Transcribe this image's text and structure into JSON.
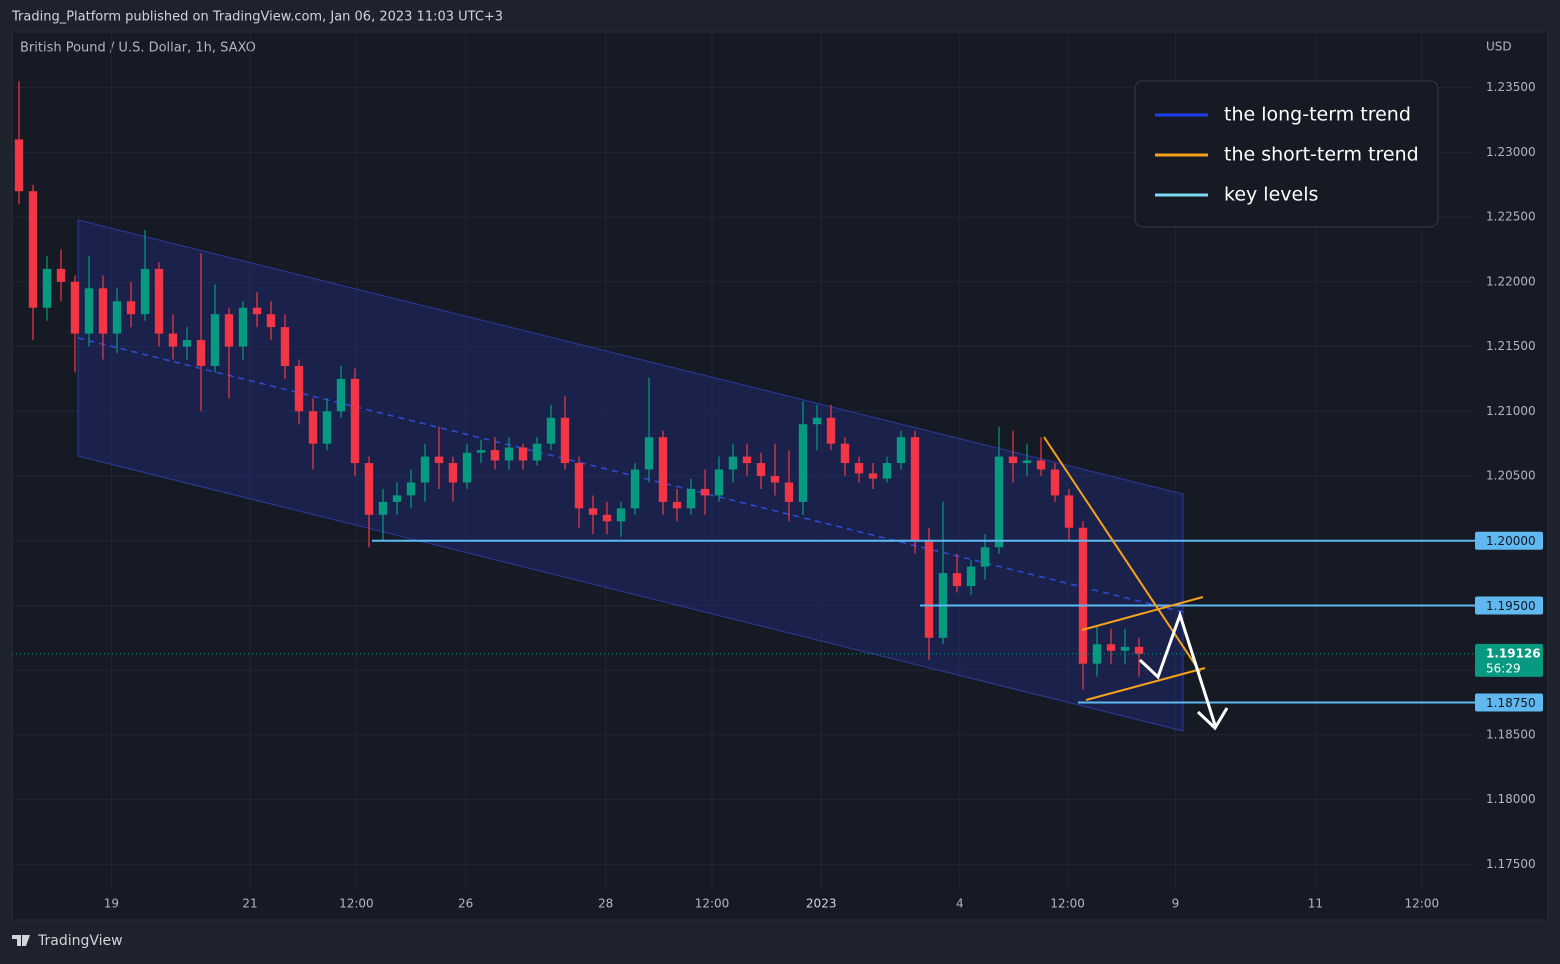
{
  "header": {
    "published": "Trading_Platform published on TradingView.com, Jan 06, 2023 11:03 UTC+3",
    "footer": "TradingView"
  },
  "chart_data": {
    "type": "candlestick",
    "title": "British Pound / U.S. Dollar, 1h, SAXO",
    "currency": "USD",
    "up_color": "#089981",
    "down_color": "#f23645",
    "xlim": [
      0,
      104.5
    ],
    "xticks": [
      {
        "value": 7.1,
        "label": "19"
      },
      {
        "value": 17,
        "label": "21"
      },
      {
        "value": 24.6,
        "label": "12:00"
      },
      {
        "value": 32.4,
        "label": "26"
      },
      {
        "value": 42.4,
        "label": "28"
      },
      {
        "value": 50,
        "label": "12:00"
      },
      {
        "value": 57.8,
        "label": "2023"
      },
      {
        "value": 67.7,
        "label": "4"
      },
      {
        "value": 75.4,
        "label": "12:00"
      },
      {
        "value": 83.1,
        "label": "9"
      },
      {
        "value": 93.1,
        "label": "11"
      },
      {
        "value": 100.7,
        "label": "12:00"
      }
    ],
    "ylim": [
      1.1707,
      1.2393
    ],
    "yticks": [
      {
        "value": 1.175,
        "label": "1.17500"
      },
      {
        "value": 1.18,
        "label": "1.18000"
      },
      {
        "value": 1.185,
        "label": "1.18500"
      },
      {
        "value": 1.19,
        "label": "1.19000"
      },
      {
        "value": 1.195,
        "label": "1.19500"
      },
      {
        "value": 1.2,
        "label": "1.20000"
      },
      {
        "value": 1.205,
        "label": "1.20500"
      },
      {
        "value": 1.21,
        "label": "1.21000"
      },
      {
        "value": 1.215,
        "label": "1.21500"
      },
      {
        "value": 1.22,
        "label": "1.22000"
      },
      {
        "value": 1.225,
        "label": "1.22500"
      },
      {
        "value": 1.23,
        "label": "1.23000"
      },
      {
        "value": 1.235,
        "label": "1.23500"
      }
    ],
    "grid": true,
    "key_levels": [
      {
        "value": 1.2,
        "label": "1.20000"
      },
      {
        "value": 1.195,
        "label": "1.19500"
      },
      {
        "value": 1.1875,
        "label": "1.18750"
      }
    ],
    "last_price": {
      "value": 1.19126,
      "label": "1.19126",
      "countdown": "56:29"
    },
    "legend": [
      {
        "name": "the long-term trend",
        "color": "#1e3cf0"
      },
      {
        "name": "the short-term trend",
        "color": "#f7a21b"
      },
      {
        "name": "key levels",
        "color": "#7fdcf5"
      }
    ],
    "open": [
      1.231,
      1.227,
      1.218,
      1.221,
      1.22,
      1.216,
      1.2195,
      1.216,
      1.2185,
      1.2175,
      1.221,
      1.216,
      1.215,
      1.2155,
      1.2135,
      1.2175,
      1.215,
      1.218,
      1.2175,
      1.2165,
      1.2135,
      1.21,
      1.2075,
      1.21,
      1.2125,
      1.206,
      1.202,
      1.203,
      1.2035,
      1.2045,
      1.2065,
      1.206,
      1.2045,
      1.2068,
      1.207,
      1.2062,
      1.2072,
      1.2062,
      1.2075,
      1.2095,
      1.206,
      1.2025,
      1.202,
      1.2015,
      1.2025,
      1.2055,
      1.208,
      1.203,
      1.2025,
      1.204,
      1.2035,
      1.2055,
      1.2065,
      1.206,
      1.205,
      1.2045,
      1.203,
      1.209,
      1.2095,
      1.2075,
      1.206,
      1.2052,
      1.2048,
      1.206,
      1.208,
      1.2,
      1.1925,
      1.1975,
      1.1965,
      1.198,
      1.1995,
      1.2065,
      1.206,
      1.2062,
      1.2055,
      1.2035,
      1.201,
      1.1905,
      1.192,
      1.1915,
      1.1918
    ],
    "high": [
      1.2355,
      1.2275,
      1.222,
      1.2225,
      1.2205,
      1.222,
      1.2205,
      1.2195,
      1.22,
      1.224,
      1.2215,
      1.2175,
      1.2165,
      1.2222,
      1.2198,
      1.218,
      1.2185,
      1.2192,
      1.2185,
      1.2175,
      1.214,
      1.211,
      1.211,
      1.2135,
      1.2133,
      1.2065,
      1.204,
      1.2045,
      1.2055,
      1.2075,
      1.2088,
      1.2065,
      1.2075,
      1.2078,
      1.208,
      1.208,
      1.2075,
      1.208,
      1.2105,
      1.2112,
      1.2065,
      1.2035,
      1.203,
      1.203,
      1.206,
      1.2126,
      1.2085,
      1.204,
      1.2048,
      1.2055,
      1.2065,
      1.2075,
      1.2075,
      1.2068,
      1.2075,
      1.207,
      1.2108,
      1.2105,
      1.2105,
      1.208,
      1.2065,
      1.206,
      1.2065,
      1.2085,
      1.2085,
      1.201,
      1.203,
      1.199,
      1.1985,
      1.2005,
      1.2088,
      1.2085,
      1.2075,
      1.208,
      1.206,
      1.204,
      1.2015,
      1.1935,
      1.1932,
      1.1932,
      1.1925
    ],
    "low": [
      1.226,
      1.2155,
      1.217,
      1.2185,
      1.213,
      1.215,
      1.214,
      1.2145,
      1.2165,
      1.217,
      1.215,
      1.214,
      1.214,
      1.21,
      1.213,
      1.211,
      1.214,
      1.2165,
      1.2155,
      1.2125,
      1.209,
      1.2055,
      1.207,
      1.2095,
      1.205,
      1.1995,
      1.2,
      1.202,
      1.2025,
      1.203,
      1.204,
      1.203,
      1.204,
      1.206,
      1.2055,
      1.2055,
      1.2055,
      1.2058,
      1.207,
      1.2055,
      1.201,
      1.2005,
      1.2005,
      1.2003,
      1.202,
      1.2045,
      1.202,
      1.2015,
      1.202,
      1.202,
      1.203,
      1.2045,
      1.205,
      1.204,
      1.2035,
      1.2015,
      1.202,
      1.207,
      1.207,
      1.205,
      1.2045,
      1.204,
      1.2045,
      1.2055,
      1.199,
      1.1908,
      1.192,
      1.196,
      1.1958,
      1.197,
      1.199,
      1.2045,
      1.205,
      1.205,
      1.203,
      1.2,
      1.1885,
      1.1895,
      1.1905,
      1.1905,
      1.1895
    ],
    "close": [
      1.227,
      1.218,
      1.221,
      1.22,
      1.216,
      1.2195,
      1.216,
      1.2185,
      1.2175,
      1.221,
      1.216,
      1.215,
      1.2155,
      1.2135,
      1.2175,
      1.215,
      1.218,
      1.2175,
      1.2165,
      1.2135,
      1.21,
      1.2075,
      1.21,
      1.2125,
      1.206,
      1.202,
      1.203,
      1.2035,
      1.2045,
      1.2065,
      1.206,
      1.2045,
      1.2068,
      1.207,
      1.2062,
      1.2072,
      1.2062,
      1.2075,
      1.2095,
      1.206,
      1.2025,
      1.202,
      1.2015,
      1.2025,
      1.2055,
      1.208,
      1.203,
      1.2025,
      1.204,
      1.2035,
      1.2055,
      1.2065,
      1.206,
      1.205,
      1.2045,
      1.203,
      1.209,
      1.2095,
      1.2075,
      1.206,
      1.2052,
      1.2048,
      1.206,
      1.208,
      1.2,
      1.1925,
      1.1975,
      1.1965,
      1.198,
      1.1995,
      1.2065,
      1.206,
      1.2062,
      1.2055,
      1.2035,
      1.201,
      1.1905,
      1.192,
      1.1915,
      1.1918,
      1.19126
    ]
  }
}
